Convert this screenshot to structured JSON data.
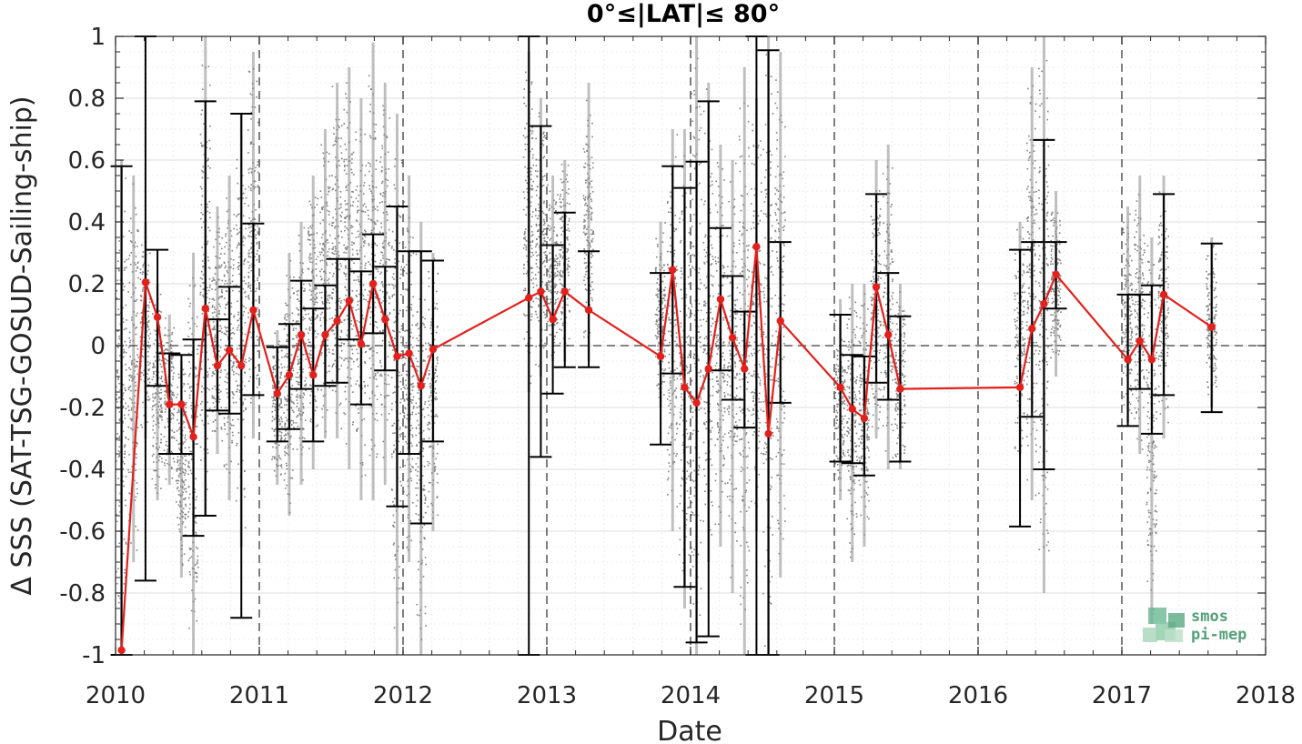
{
  "chart_data": {
    "type": "scatter",
    "title": "0°≤|LAT|≤ 80°",
    "xlabel": "Date",
    "ylabel": "Δ SSS (SAT-TSG-GOSUD-Sailing-ship)",
    "xlim": [
      2010,
      2018
    ],
    "ylim": [
      -1,
      1
    ],
    "x_ticks": [
      "2010",
      "2011",
      "2012",
      "2013",
      "2014",
      "2015",
      "2016",
      "2017",
      "2018"
    ],
    "y_ticks": [
      "1",
      "0.8",
      "0.6",
      "0.4",
      "0.2",
      "0",
      "-0.2",
      "-0.4",
      "-0.6",
      "-0.8",
      "-1"
    ],
    "grid": true,
    "year_boundary_lines": [
      "2011",
      "2012",
      "2013",
      "2014",
      "2015",
      "2016",
      "2017"
    ],
    "zero_line": 0,
    "colors": {
      "points": "#808080",
      "mean": "#e3201b",
      "errorbar": "#000000",
      "reference": "#3a3a3a"
    },
    "series": [
      {
        "role": "monthly mean with error bars",
        "x": [
          "2010-01",
          "2010-03",
          "2010-04",
          "2010-05",
          "2010-06",
          "2010-07",
          "2010-08",
          "2010-09",
          "2010-10",
          "2010-11",
          "2010-12",
          "2011-02",
          "2011-03",
          "2011-04",
          "2011-05",
          "2011-06",
          "2011-07",
          "2011-08",
          "2011-09",
          "2011-10",
          "2011-11",
          "2011-12",
          "2012-01",
          "2012-02",
          "2012-03",
          "2012-11",
          "2012-12",
          "2013-01",
          "2013-02",
          "2013-04",
          "2013-10",
          "2013-11",
          "2013-12",
          "2014-01",
          "2014-02",
          "2014-03",
          "2014-04",
          "2014-05",
          "2014-06",
          "2014-07",
          "2014-08",
          "2015-01",
          "2015-02",
          "2015-03",
          "2015-04",
          "2015-05",
          "2015-06",
          "2016-04",
          "2016-05",
          "2016-06",
          "2016-07",
          "2017-01",
          "2017-02",
          "2017-03",
          "2017-04",
          "2017-08"
        ],
        "mean": [
          -0.985,
          0.205,
          0.092,
          -0.19,
          -0.19,
          -0.295,
          0.12,
          -0.065,
          -0.015,
          -0.065,
          0.115,
          -0.155,
          -0.095,
          0.035,
          -0.095,
          0.035,
          0.08,
          0.145,
          0.005,
          0.2,
          0.085,
          -0.035,
          -0.025,
          -0.13,
          -0.012,
          0.155,
          0.175,
          0.085,
          0.175,
          0.115,
          -0.035,
          0.245,
          -0.135,
          -0.185,
          -0.075,
          0.15,
          0.025,
          -0.075,
          0.32,
          -0.285,
          0.08,
          -0.135,
          -0.205,
          -0.235,
          0.19,
          0.035,
          -0.14,
          -0.135,
          0.055,
          0.135,
          0.23,
          -0.045,
          0.015,
          -0.045,
          0.165,
          0.06
        ],
        "lower": [
          -1,
          -0.76,
          -0.13,
          -0.35,
          -0.35,
          -0.615,
          -0.55,
          -0.21,
          -0.22,
          -0.88,
          -0.16,
          -0.31,
          -0.27,
          -0.14,
          -0.31,
          -0.13,
          -0.12,
          0.02,
          -0.19,
          0.04,
          -0.08,
          -0.52,
          -0.35,
          -0.575,
          -0.31,
          -1,
          -0.36,
          -0.155,
          -0.07,
          -0.07,
          -0.32,
          -0.09,
          -0.78,
          -0.96,
          -0.94,
          -0.08,
          -0.175,
          -0.265,
          -1,
          -1,
          -0.185,
          -0.375,
          -0.38,
          -0.42,
          -0.12,
          -0.175,
          -0.375,
          -0.585,
          -0.23,
          -0.4,
          0.12,
          -0.26,
          -0.14,
          -0.285,
          -0.16,
          -0.215
        ],
        "upper": [
          0.58,
          1,
          0.31,
          -0.025,
          -0.03,
          0.02,
          0.79,
          0.085,
          0.19,
          0.75,
          0.395,
          -0.005,
          0.07,
          0.21,
          0.12,
          0.195,
          0.28,
          0.28,
          0.24,
          0.36,
          0.255,
          0.45,
          0.305,
          0.305,
          0.275,
          1,
          0.71,
          0.325,
          0.43,
          0.305,
          0.235,
          0.58,
          0.51,
          0.595,
          0.79,
          0.38,
          0.225,
          0.11,
          1,
          0.955,
          0.335,
          0.1,
          -0.03,
          -0.035,
          0.49,
          0.235,
          0.095,
          0.31,
          0.335,
          0.665,
          0.335,
          0.165,
          0.165,
          0.195,
          0.49,
          0.33
        ]
      }
    ],
    "scatter_clusters": [
      {
        "x": "2010-01",
        "low": -1,
        "high": 0.6
      },
      {
        "x": "2010-02",
        "low": -0.7,
        "high": 0.55
      },
      {
        "x": "2010-03",
        "low": -0.3,
        "high": 0.4
      },
      {
        "x": "2010-04",
        "low": -0.5,
        "high": 0.2
      },
      {
        "x": "2010-05",
        "low": -0.45,
        "high": 0.1
      },
      {
        "x": "2010-06",
        "low": -0.75,
        "high": -0.05
      },
      {
        "x": "2010-07",
        "low": -1,
        "high": 0.3
      },
      {
        "x": "2010-08",
        "low": -0.55,
        "high": 1
      },
      {
        "x": "2010-09",
        "low": -0.35,
        "high": 0.45
      },
      {
        "x": "2010-10",
        "low": -0.5,
        "high": 0.55
      },
      {
        "x": "2010-11",
        "low": -0.65,
        "high": 0.75
      },
      {
        "x": "2010-12",
        "low": -0.3,
        "high": 0.95
      },
      {
        "x": "2011-02",
        "low": -0.45,
        "high": 0.05
      },
      {
        "x": "2011-03",
        "low": -0.55,
        "high": 0.3
      },
      {
        "x": "2011-04",
        "low": -0.45,
        "high": 0.4
      },
      {
        "x": "2011-05",
        "low": -0.4,
        "high": 0.55
      },
      {
        "x": "2011-06",
        "low": -0.3,
        "high": 0.7
      },
      {
        "x": "2011-07",
        "low": -0.3,
        "high": 0.85
      },
      {
        "x": "2011-08",
        "low": -0.4,
        "high": 0.9
      },
      {
        "x": "2011-09",
        "low": -0.5,
        "high": 0.8
      },
      {
        "x": "2011-10",
        "low": -0.5,
        "high": 0.98
      },
      {
        "x": "2011-11",
        "low": -0.45,
        "high": 0.85
      },
      {
        "x": "2011-12",
        "low": -1,
        "high": 0.75
      },
      {
        "x": "2012-01",
        "low": -0.7,
        "high": 0.55
      },
      {
        "x": "2012-02",
        "low": -1,
        "high": 0.4
      },
      {
        "x": "2012-03",
        "low": -0.6,
        "high": 0.3
      },
      {
        "x": "2012-11",
        "low": -0.15,
        "high": 0.95
      },
      {
        "x": "2012-12",
        "low": -0.1,
        "high": 0.8
      },
      {
        "x": "2013-01",
        "low": -0.05,
        "high": 0.55
      },
      {
        "x": "2013-02",
        "low": -0.05,
        "high": 0.6
      },
      {
        "x": "2013-04",
        "low": -0.05,
        "high": 0.85
      },
      {
        "x": "2013-10",
        "low": -0.2,
        "high": 0.4
      },
      {
        "x": "2013-11",
        "low": -0.6,
        "high": 0.7
      },
      {
        "x": "2013-12",
        "low": -0.85,
        "high": 0.7
      },
      {
        "x": "2014-01",
        "low": -1,
        "high": 1
      },
      {
        "x": "2014-02",
        "low": -0.7,
        "high": 0.85
      },
      {
        "x": "2014-03",
        "low": -0.65,
        "high": 0.65
      },
      {
        "x": "2014-04",
        "low": -0.8,
        "high": 0.6
      },
      {
        "x": "2014-05",
        "low": -1,
        "high": 0.9
      },
      {
        "x": "2014-06",
        "low": -0.6,
        "high": 0.8
      },
      {
        "x": "2014-07",
        "low": -1,
        "high": 1
      },
      {
        "x": "2014-08",
        "low": -0.75,
        "high": 0.95
      },
      {
        "x": "2015-01",
        "low": -0.5,
        "high": 0.15
      },
      {
        "x": "2015-02",
        "low": -0.7,
        "high": 0.2
      },
      {
        "x": "2015-03",
        "low": -0.65,
        "high": 0.2
      },
      {
        "x": "2015-04",
        "low": -0.3,
        "high": 0.6
      },
      {
        "x": "2015-05",
        "low": -0.4,
        "high": 0.65
      },
      {
        "x": "2015-06",
        "low": -0.4,
        "high": 0.2
      },
      {
        "x": "2016-04",
        "low": -0.35,
        "high": 0.4
      },
      {
        "x": "2016-05",
        "low": -0.5,
        "high": 0.9
      },
      {
        "x": "2016-06",
        "low": -0.8,
        "high": 1
      },
      {
        "x": "2016-07",
        "low": -0.1,
        "high": 0.5
      },
      {
        "x": "2017-01",
        "low": -0.25,
        "high": 0.45
      },
      {
        "x": "2017-02",
        "low": -0.35,
        "high": 0.55
      },
      {
        "x": "2017-03",
        "low": -0.9,
        "high": 0.35
      },
      {
        "x": "2017-04",
        "low": -0.3,
        "high": 0.55
      },
      {
        "x": "2017-08",
        "low": -0.2,
        "high": 0.35
      }
    ]
  },
  "logo": {
    "line1": "smos",
    "line2": "pi-mep"
  }
}
